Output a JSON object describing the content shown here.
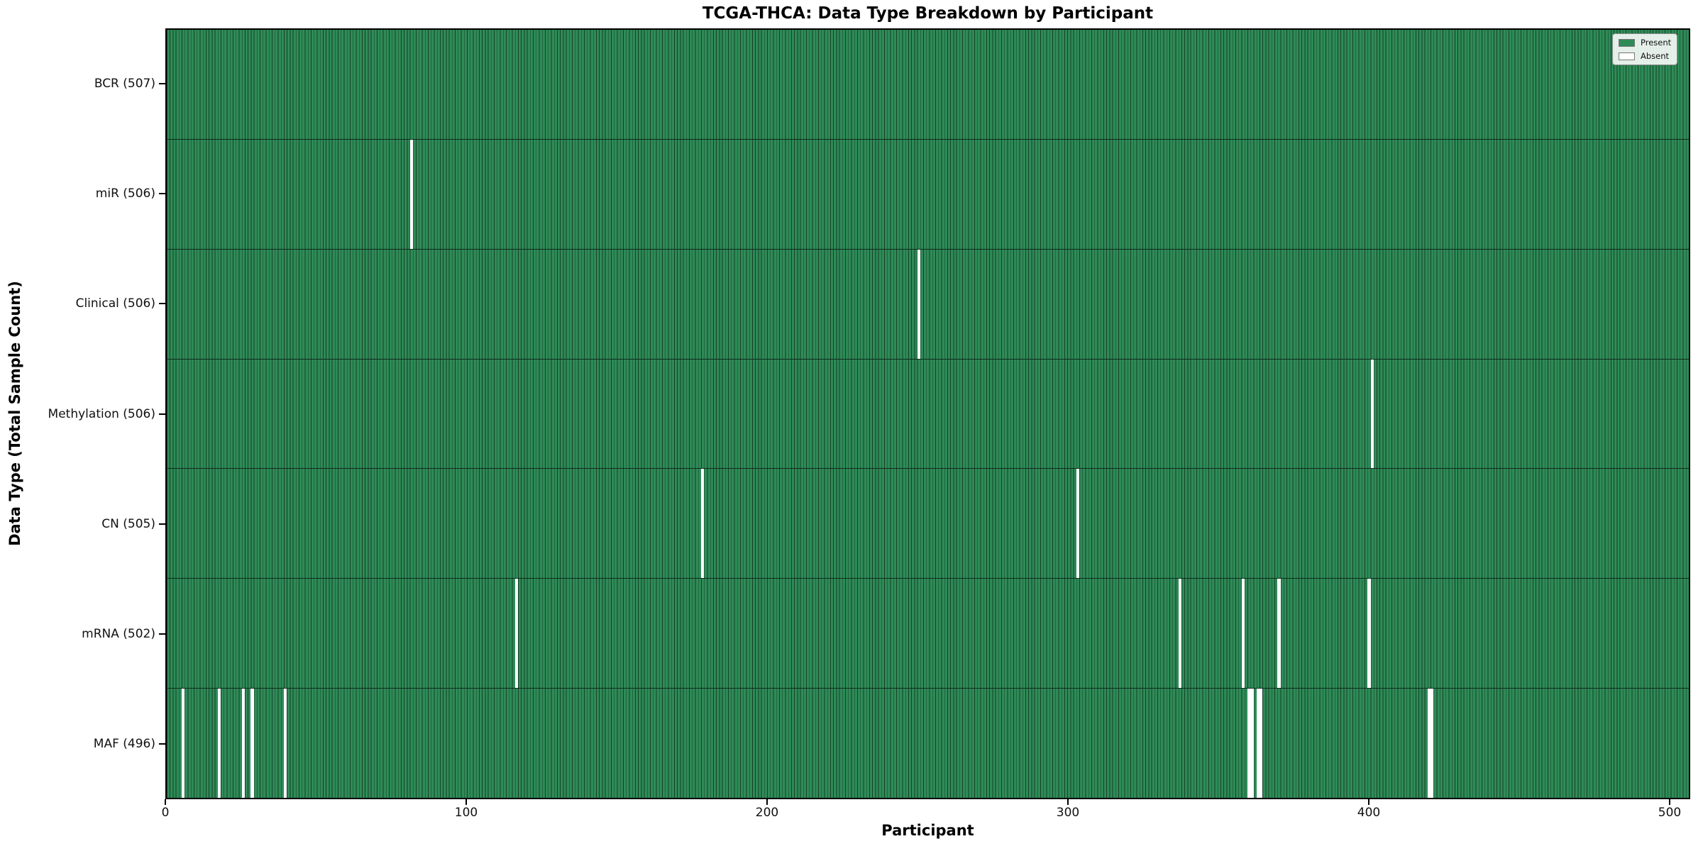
{
  "chart_data": {
    "type": "heatmap",
    "title": "TCGA-THCA: Data Type Breakdown by Participant",
    "xlabel": "Participant",
    "ylabel": "Data Type (Total Sample Count)",
    "x_ticks": [
      0,
      100,
      200,
      300,
      400,
      500
    ],
    "x_range": [
      0,
      507
    ],
    "total_participants": 507,
    "grid": false,
    "legend": {
      "position": "upper-right",
      "entries": [
        {
          "label": "Present",
          "color": "#2e8b57"
        },
        {
          "label": "Absent",
          "color": "#ffffff"
        }
      ]
    },
    "colors": {
      "present_fill": "#2e8b57",
      "bar_edge": "#173f28",
      "absent_fill": "#ffffff",
      "row_divider": "#0e2b1b",
      "axis": "#000000"
    },
    "rows": [
      {
        "label": "BCR (507)",
        "data_type": "BCR",
        "present_count": 507,
        "absent_participants": []
      },
      {
        "label": "miR (506)",
        "data_type": "miR",
        "present_count": 506,
        "absent_participants": [
          81
        ]
      },
      {
        "label": "Clinical (506)",
        "data_type": "Clinical",
        "present_count": 506,
        "absent_participants": [
          250
        ]
      },
      {
        "label": "Methylation (506)",
        "data_type": "Methylation",
        "present_count": 506,
        "absent_participants": [
          401
        ]
      },
      {
        "label": "CN (505)",
        "data_type": "CN",
        "present_count": 505,
        "absent_participants": [
          178,
          303
        ]
      },
      {
        "label": "mRNA (502)",
        "data_type": "mRNA",
        "present_count": 502,
        "absent_participants": [
          116,
          337,
          358,
          370,
          400
        ]
      },
      {
        "label": "MAF (496)",
        "data_type": "MAF",
        "present_count": 496,
        "absent_participants": [
          5,
          17,
          25,
          28,
          39,
          360,
          361,
          363,
          364,
          420,
          421
        ]
      }
    ]
  }
}
